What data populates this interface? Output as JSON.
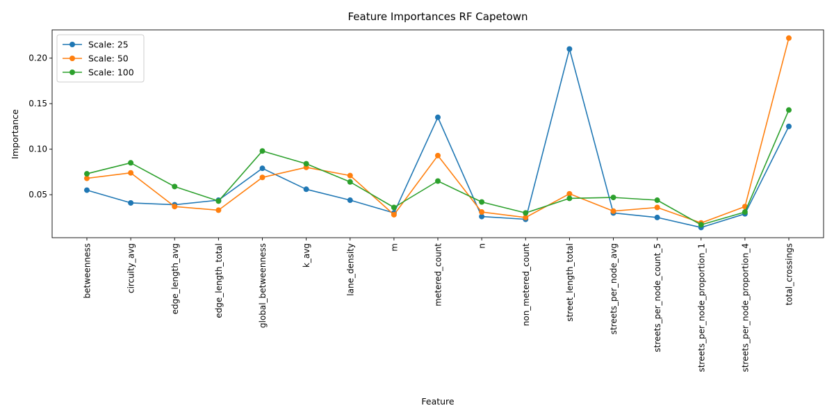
{
  "chart_data": {
    "type": "line",
    "title": "Feature Importances RF Capetown",
    "xlabel": "Feature",
    "ylabel": "Importance",
    "ylim": [
      0.0028,
      0.231
    ],
    "yticks": [
      0.05,
      0.1,
      0.15,
      0.2
    ],
    "ytick_labels": [
      "0.05",
      "0.10",
      "0.15",
      "0.20"
    ],
    "grid": false,
    "legend_position": "top-left",
    "categories": [
      "betweenness",
      "circuity_avg",
      "edge_length_avg",
      "edge_length_total",
      "global_betweenness",
      "k_avg",
      "lane_density",
      "m",
      "metered_count",
      "n",
      "non_metered_count",
      "street_length_total",
      "streets_per_node_avg",
      "streets_per_node_count_5",
      "streets_per_node_proportion_1",
      "streets_per_node_proportion_4",
      "total_crossings"
    ],
    "series": [
      {
        "name": "Scale: 25",
        "color": "#1f77b4",
        "values": [
          0.055,
          0.041,
          0.039,
          0.044,
          0.079,
          0.056,
          0.044,
          0.03,
          0.135,
          0.026,
          0.023,
          0.21,
          0.03,
          0.025,
          0.014,
          0.029,
          0.125
        ]
      },
      {
        "name": "Scale: 50",
        "color": "#ff7f0e",
        "values": [
          0.068,
          0.074,
          0.037,
          0.033,
          0.069,
          0.08,
          0.071,
          0.028,
          0.093,
          0.031,
          0.025,
          0.051,
          0.032,
          0.036,
          0.019,
          0.037,
          0.222
        ]
      },
      {
        "name": "Scale: 100",
        "color": "#2ca02c",
        "values": [
          0.073,
          0.085,
          0.059,
          0.043,
          0.098,
          0.084,
          0.064,
          0.036,
          0.065,
          0.042,
          0.03,
          0.046,
          0.047,
          0.044,
          0.017,
          0.031,
          0.143
        ]
      }
    ]
  }
}
